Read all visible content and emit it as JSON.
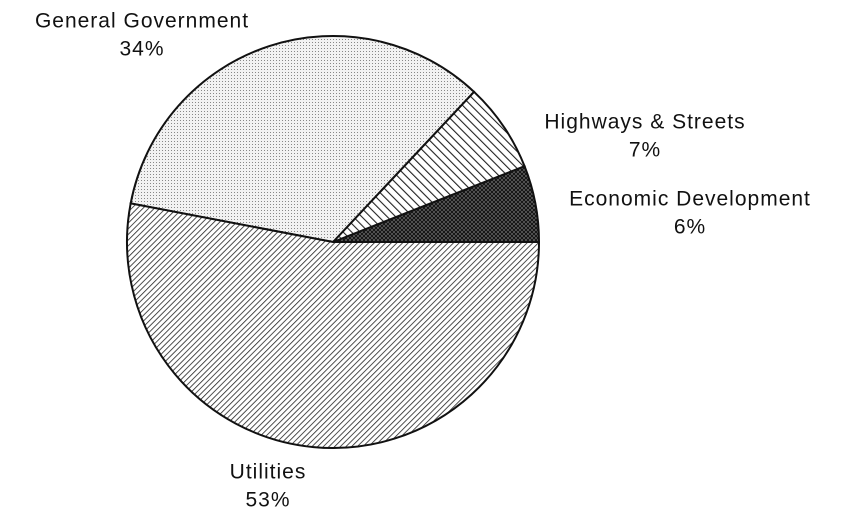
{
  "chart_data": {
    "type": "pie",
    "categories": [
      "Economic Development",
      "Highways & Streets",
      "General Government",
      "Utilities"
    ],
    "values": [
      6,
      7,
      34,
      53
    ],
    "value_labels": [
      "6%",
      "7%",
      "34%",
      "53%"
    ]
  }
}
